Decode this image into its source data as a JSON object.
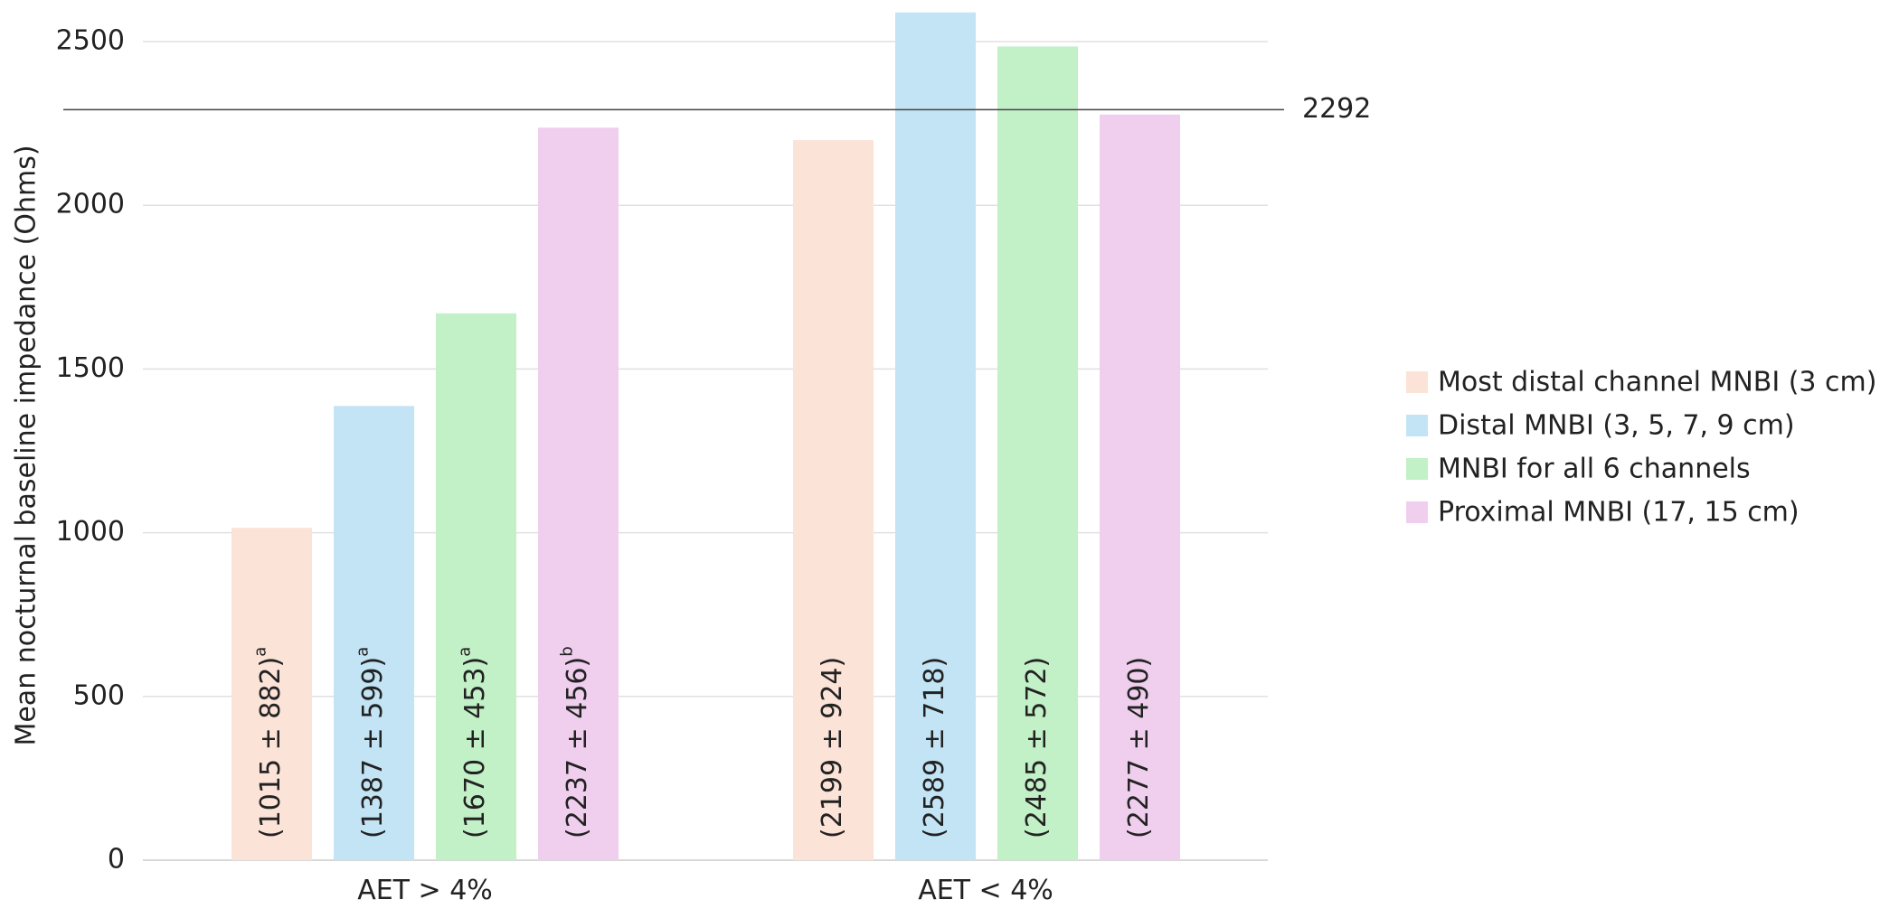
{
  "chart_data": {
    "type": "bar",
    "ylabel": "Mean nocturnal baseline impedance (Ohms)",
    "xlabel": "",
    "ylim": [
      0,
      2590
    ],
    "yticks": [
      0,
      500,
      1000,
      1500,
      2000,
      2500
    ],
    "grid": true,
    "legend_position": "right",
    "categories": [
      "AET > 4%",
      "AET < 4%"
    ],
    "reference_line": {
      "value": 2292,
      "label": "2292",
      "color": "#444444"
    },
    "series": [
      {
        "name": "Most distal channel MNBI (3 cm)",
        "color": "#fce3d8",
        "values": [
          1015,
          2199
        ],
        "labels": [
          "(1015 ± 882)",
          "(2199 ± 924)"
        ],
        "sups": [
          "a",
          ""
        ]
      },
      {
        "name": "Distal MNBI (3, 5, 7, 9 cm)",
        "color": "#c2e4f4",
        "values": [
          1387,
          2589
        ],
        "labels": [
          "(1387 ± 599)",
          "(2589 ± 718)"
        ],
        "sups": [
          "a",
          ""
        ]
      },
      {
        "name": "MNBI for all 6 channels",
        "color": "#c2f0c7",
        "values": [
          1670,
          2485
        ],
        "labels": [
          "(1670 ± 453)",
          "(2485 ± 572)"
        ],
        "sups": [
          "a",
          ""
        ]
      },
      {
        "name": "Proximal MNBI (17, 15 cm)",
        "color": "#f0cfee",
        "values": [
          2237,
          2277
        ],
        "labels": [
          "(2237 ± 456)",
          "(2277 ± 490)"
        ],
        "sups": [
          "b",
          ""
        ]
      }
    ]
  }
}
